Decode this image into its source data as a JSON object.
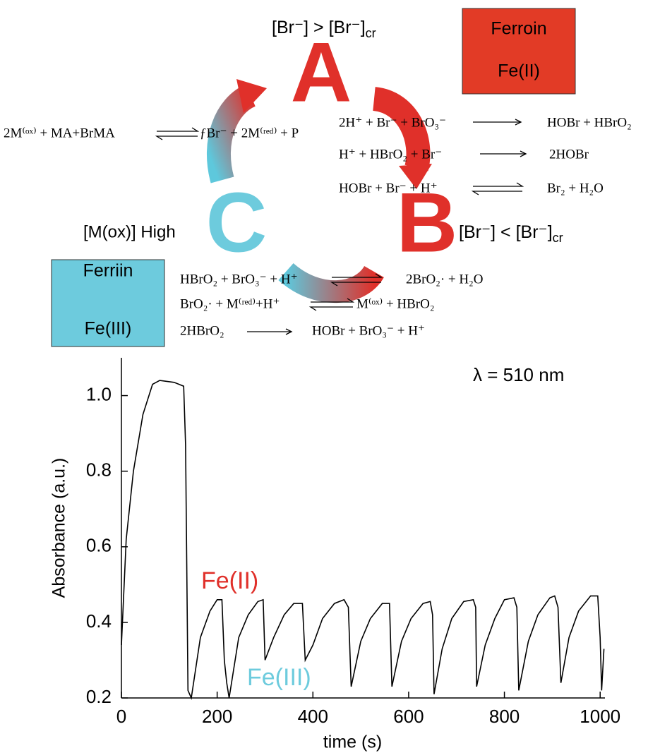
{
  "diagram": {
    "condition_high": {
      "main": "[Br⁻] > [Br⁻]",
      "sub": "cr"
    },
    "condition_low": {
      "main": "[Br⁻] < [Br⁻]",
      "sub": "cr"
    },
    "stage_a": "A",
    "stage_b": "B",
    "stage_c": "C",
    "mox_label": "[M(ox)] High",
    "ferroin_box": {
      "name": "Ferroin",
      "ion": "Fe(II)"
    },
    "ferriin_box": {
      "name": "Ferriin",
      "ion": "Fe(III)"
    },
    "reaction_c_to_a": {
      "left": "2M⁽ᵒˣ⁾ + MA+BrMA",
      "right": "ƒBr⁻ + 2M⁽ʳᵉᵈ⁾ + P"
    },
    "reactions_a_to_b": [
      {
        "left": "2H⁺ + Br⁻ + BrO₃⁻",
        "right": "HOBr + HBrO₂"
      },
      {
        "left": "H⁺ + HBrO₂ + Br⁻",
        "right": "2HOBr"
      },
      {
        "left": "HOBr + Br⁻ + H⁺",
        "right": "Br₂ + H₂O"
      }
    ],
    "reactions_b_to_c": [
      {
        "left": "HBrO₂ + BrO₃⁻ + H⁺",
        "right": "2BrO₂· + H₂O"
      },
      {
        "left": "BrO₂· + M⁽ʳᵉᵈ⁾+H⁺",
        "right": "M⁽ᵒˣ⁾ + HBrO₂"
      },
      {
        "left": "2HBrO₂",
        "right": "HOBr + BrO₃⁻ + H⁺"
      }
    ]
  },
  "chart_data": {
    "type": "line",
    "x_label": "time (s)",
    "y_label": "Absorbance (a.u.)",
    "annotations": [
      "λ = 510 nm",
      "Fe(II)",
      "Fe(III)"
    ],
    "color": "#000000",
    "xlim": [
      0,
      1010
    ],
    "ylim": [
      0.2,
      1.1
    ],
    "xticks": [
      0,
      200,
      400,
      600,
      800,
      1000
    ],
    "yticks": [
      0.2,
      0.4,
      0.6,
      0.8,
      {
        "value": 1,
        "label": "1.0"
      }
    ],
    "x": [
      0,
      10,
      25,
      45,
      65,
      80,
      110,
      130,
      134,
      139,
      146,
      165,
      185,
      200,
      210,
      215,
      220,
      225,
      245,
      265,
      285,
      296,
      300,
      318,
      340,
      360,
      378,
      384,
      400,
      420,
      445,
      465,
      474,
      480,
      500,
      520,
      545,
      560,
      565,
      585,
      605,
      630,
      645,
      650,
      653,
      670,
      690,
      715,
      735,
      740,
      742,
      760,
      780,
      800,
      820,
      826,
      830,
      850,
      870,
      895,
      905,
      912,
      918,
      935,
      955,
      980,
      995,
      1000,
      1003,
      1008
    ],
    "values": [
      0.34,
      0.62,
      0.8,
      0.95,
      1.03,
      1.04,
      1.035,
      1.025,
      0.87,
      0.22,
      0.2,
      0.36,
      0.43,
      0.46,
      0.46,
      0.3,
      0.24,
      0.2,
      0.36,
      0.42,
      0.455,
      0.46,
      0.3,
      0.36,
      0.42,
      0.45,
      0.45,
      0.3,
      0.34,
      0.41,
      0.45,
      0.46,
      0.44,
      0.23,
      0.35,
      0.41,
      0.45,
      0.45,
      0.23,
      0.35,
      0.41,
      0.45,
      0.455,
      0.42,
      0.21,
      0.33,
      0.41,
      0.455,
      0.46,
      0.44,
      0.23,
      0.34,
      0.41,
      0.46,
      0.465,
      0.44,
      0.22,
      0.35,
      0.42,
      0.465,
      0.47,
      0.44,
      0.24,
      0.36,
      0.43,
      0.47,
      0.47,
      0.36,
      0.22,
      0.33
    ]
  }
}
